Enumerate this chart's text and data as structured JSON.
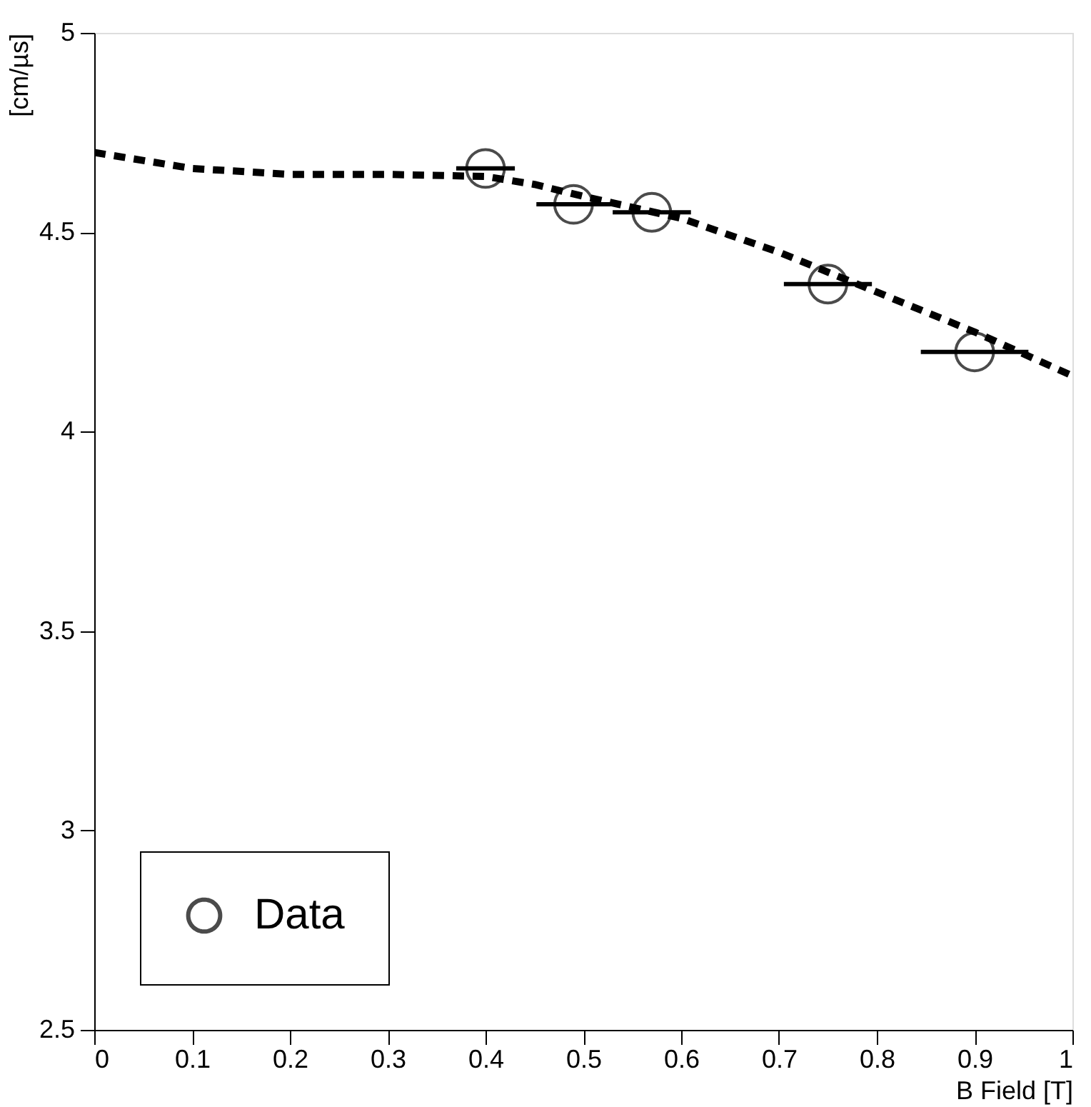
{
  "chart_data": {
    "type": "scatter",
    "xlabel": "B Field [T]",
    "ylabel": "[cm/µs]",
    "xlim": [
      0,
      1
    ],
    "xticks": [
      0,
      0.1,
      0.2,
      0.3,
      0.4,
      0.5,
      0.6,
      0.7,
      0.8,
      0.9,
      1
    ],
    "ylim": [
      2.5,
      5
    ],
    "yticks": [
      2.5,
      3,
      3.5,
      4,
      4.5,
      5
    ],
    "legend": "bottom left",
    "grid": false,
    "series": [
      {
        "name": "Data",
        "marker": "circle",
        "color": "#000000",
        "x": [
          0.4,
          0.49,
          0.57,
          0.75,
          0.9
        ],
        "values": [
          4.66,
          4.57,
          4.55,
          4.37,
          4.2
        ],
        "xerrors": [
          0.03,
          0.038,
          0.04,
          0.045,
          0.055
        ]
      },
      {
        "type": "line",
        "line_style": "dashed",
        "color": "#000000",
        "x": [
          0,
          0.1,
          0.2,
          0.3,
          0.4,
          0.45,
          0.5,
          0.6,
          0.7,
          0.8,
          0.9,
          1.0
        ],
        "values": [
          4.7,
          4.66,
          4.645,
          4.645,
          4.64,
          4.62,
          4.59,
          4.535,
          4.45,
          4.35,
          4.25,
          4.14
        ]
      }
    ]
  }
}
